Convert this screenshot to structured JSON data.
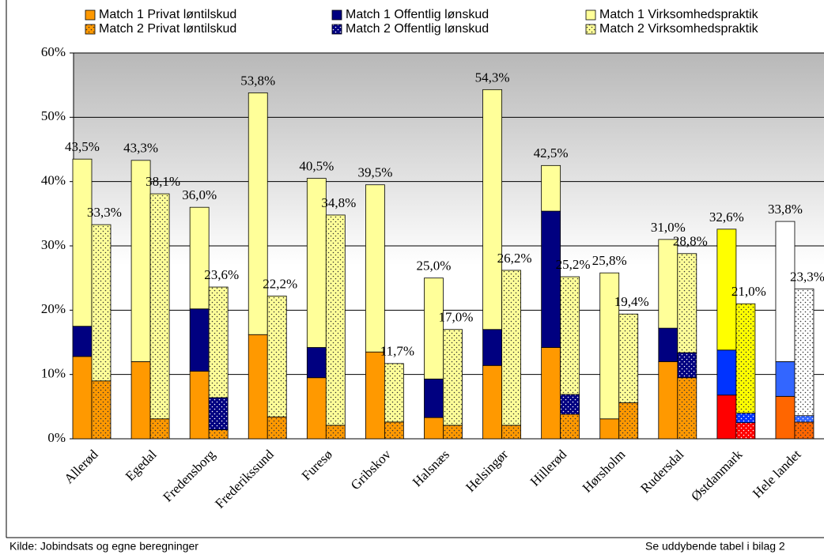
{
  "chart_data": {
    "type": "bar",
    "categories": [
      "Allerød",
      "Egedal",
      "Fredensborg",
      "Frederikssund",
      "Furesø",
      "Gribskov",
      "Halsnæs",
      "Helsingør",
      "Hillerød",
      "Hørsholm",
      "Rudersdal",
      "Østdanmark",
      "Hele landet"
    ],
    "series": [
      {
        "name": "Match 1 Privat løntilskud",
        "color": "#ff9900",
        "stack": 0,
        "colors": [
          "#ff9900",
          "#ff9900",
          "#ff9900",
          "#ff9900",
          "#ff9900",
          "#ff9900",
          "#ff9900",
          "#ff9900",
          "#ff9900",
          "#ff9900",
          "#ff9900",
          "#ff0000",
          "#ff6600"
        ],
        "values": [
          12.8,
          12.0,
          10.5,
          16.2,
          9.5,
          13.5,
          3.3,
          11.4,
          14.2,
          3.1,
          12.0,
          6.8,
          6.6
        ]
      },
      {
        "name": "Match 1 Offentlig lønskud",
        "color": "#000080",
        "stack": 0,
        "colors": [
          "#000080",
          "#000080",
          "#000080",
          "#000080",
          "#000080",
          "#000080",
          "#000080",
          "#000080",
          "#000080",
          "#000080",
          "#000080",
          "#0033ff",
          "#3366ff"
        ],
        "values": [
          4.7,
          0,
          9.7,
          0,
          4.7,
          0,
          6.0,
          5.6,
          21.2,
          0,
          5.2,
          7.0,
          5.4
        ]
      },
      {
        "name": "Match 1 Virksomhedspraktik",
        "color": "#ffff99",
        "stack": 0,
        "colors": [
          "#ffff99",
          "#ffff99",
          "#ffff99",
          "#ffff99",
          "#ffff99",
          "#ffff99",
          "#ffff99",
          "#ffff99",
          "#ffff99",
          "#ffff99",
          "#ffff99",
          "#ffff00",
          "#ffffff"
        ],
        "values": [
          26.0,
          31.3,
          15.8,
          37.6,
          26.3,
          26.0,
          15.7,
          37.3,
          7.1,
          22.7,
          13.8,
          18.8,
          21.8
        ]
      },
      {
        "name": "Match 2 Privat løntilskud",
        "color": "#ff9900",
        "stack": 1,
        "pattern": "dots",
        "colors": [
          "#ff9900",
          "#ff9900",
          "#ff9900",
          "#ff9900",
          "#ff9900",
          "#ff9900",
          "#ff9900",
          "#ff9900",
          "#ff9900",
          "#ff9900",
          "#ff9900",
          "#ff0000",
          "#ff6600"
        ],
        "values": [
          9.0,
          3.1,
          1.4,
          3.4,
          2.1,
          2.6,
          2.1,
          2.1,
          3.8,
          5.6,
          9.5,
          2.5,
          2.6
        ]
      },
      {
        "name": "Match 2 Offentlig lønskud",
        "color": "#000080",
        "stack": 1,
        "pattern": "dots",
        "colors": [
          "#000080",
          "#000080",
          "#000080",
          "#000080",
          "#000080",
          "#000080",
          "#000080",
          "#000080",
          "#000080",
          "#000080",
          "#000080",
          "#0033ff",
          "#3366ff"
        ],
        "values": [
          0,
          0,
          5.0,
          0,
          0,
          0,
          0,
          0,
          3.1,
          0,
          3.9,
          1.5,
          1.0
        ]
      },
      {
        "name": "Match 2 Virksomhedspraktik",
        "color": "#ffff99",
        "stack": 1,
        "pattern": "dots",
        "colors": [
          "#ffff99",
          "#ffff99",
          "#ffff99",
          "#ffff99",
          "#ffff99",
          "#ffff99",
          "#ffff99",
          "#ffff99",
          "#ffff99",
          "#ffff99",
          "#ffff99",
          "#ffff00",
          "#ffffff"
        ],
        "values": [
          24.3,
          35.0,
          17.2,
          18.8,
          32.7,
          9.1,
          14.9,
          24.1,
          18.3,
          13.8,
          15.4,
          17.0,
          19.7
        ]
      }
    ],
    "totals": [
      {
        "stack": 0,
        "values": [
          43.5,
          43.3,
          36.0,
          53.8,
          40.5,
          39.5,
          25.0,
          54.3,
          42.5,
          25.8,
          31.0,
          32.6,
          33.8
        ],
        "value_labels": [
          "43,5%",
          "43,3%",
          "36,0%",
          "53,8%",
          "40,5%",
          "39,5%",
          "25,0%",
          "54,3%",
          "42,5%",
          "25,8%",
          "31,0%",
          "32,6%",
          "33,8%"
        ]
      },
      {
        "stack": 1,
        "values": [
          33.3,
          38.1,
          23.6,
          22.2,
          34.8,
          11.7,
          17.0,
          26.2,
          25.2,
          19.4,
          28.8,
          21.0,
          23.3
        ],
        "value_labels": [
          "33,3%",
          "38,1%",
          "23,6%",
          "22,2%",
          "34,8%",
          "11,7%",
          "17,0%",
          "26,2%",
          "25,2%",
          "19,4%",
          "28,8%",
          "21,0%",
          "23,3%"
        ]
      }
    ],
    "ylim": [
      0,
      60
    ],
    "yticks": [
      {
        "value": 0,
        "label": "0%"
      },
      {
        "value": 10,
        "label": "10%"
      },
      {
        "value": 20,
        "label": "20%"
      },
      {
        "value": 30,
        "label": "30%"
      },
      {
        "value": 40,
        "label": "40%"
      },
      {
        "value": 50,
        "label": "50%"
      },
      {
        "value": 60,
        "label": "60%"
      }
    ],
    "grid": true,
    "source": "Kilde: Jobindsats og egne beregninger",
    "note": "Se uddybende tabel i bilag 2"
  }
}
